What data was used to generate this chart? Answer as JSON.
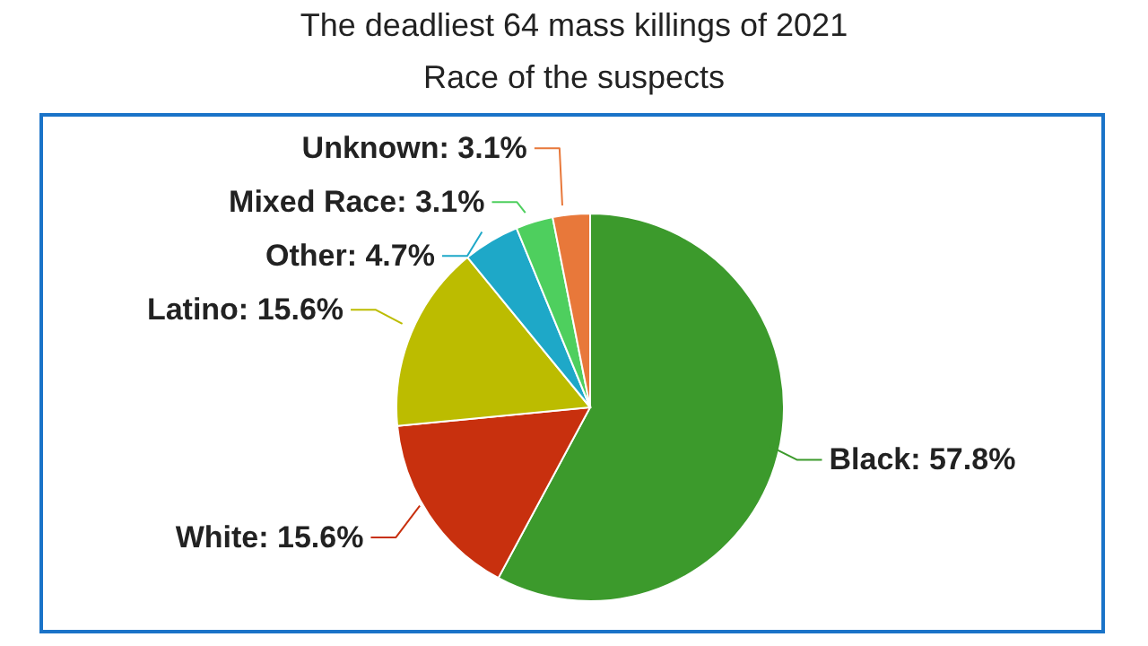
{
  "chart_data": {
    "type": "pie",
    "title": "The deadliest 64 mass killings of 2021",
    "subtitle": "Race of the suspects",
    "categories": [
      "Black",
      "White",
      "Latino",
      "Other",
      "Mixed Race",
      "Unknown"
    ],
    "values": [
      57.8,
      15.6,
      15.6,
      4.7,
      3.1,
      3.1
    ],
    "value_labels": [
      "57.8%",
      "15.6%",
      "15.6%",
      "4.7%",
      "3.1%",
      "3.1%"
    ],
    "colors": [
      "#3c9a2c",
      "#c8300e",
      "#bcbc00",
      "#1ea8c8",
      "#4ecf5e",
      "#e8783a"
    ]
  }
}
